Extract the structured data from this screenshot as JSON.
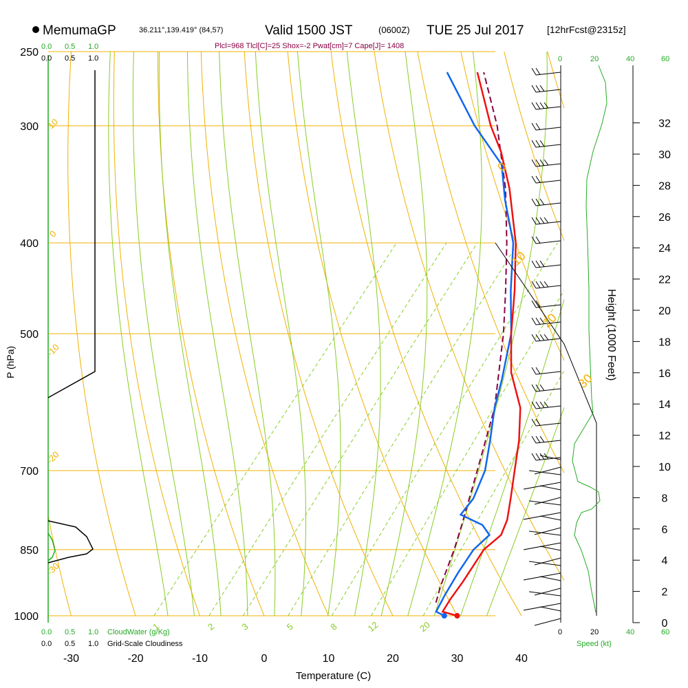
{
  "header": {
    "model": "MemumaGP",
    "location": "36.211°,139.419° (84,57)",
    "valid": "Valid 1500 JST",
    "utc": "(0600Z)",
    "date": "TUE 25 Jul 2017",
    "forecast": "[12hrFcst@2315z]",
    "indices": "Plcl=968 Tlcl[C]=25 Shox=-2 Pwat[cm]=7 Cape[J]= 1408"
  },
  "colors": {
    "isobar": "#f0b000",
    "dry_adiabat": "#f0b000",
    "moist_adiabat": "#88cc22",
    "mixing_ratio": "#88cc22",
    "temperature": "#ee1111",
    "dewpoint": "#1166ee",
    "parcel": "#880044",
    "cloud_water": "#22aa22",
    "cloudiness": "#000000",
    "green_label": "#22aa22"
  },
  "chart_data": {
    "type": "line",
    "title": "Skew-T log-P sounding",
    "xlabel": "Temperature (C)",
    "ylabel": "P (hPa)",
    "right_ylabel": "Height (1000 Feet)",
    "x_ticks": [
      "-30",
      "-20",
      "-10",
      "0",
      "10",
      "20",
      "30",
      "40"
    ],
    "p_ticks": [
      {
        "p": 250,
        "label": "250"
      },
      {
        "p": 300,
        "label": "300"
      },
      {
        "p": 400,
        "label": "400"
      },
      {
        "p": 500,
        "label": "500"
      },
      {
        "p": 700,
        "label": "700"
      },
      {
        "p": 850,
        "label": "850"
      },
      {
        "p": 1000,
        "label": "1000"
      }
    ],
    "height_ticks": [
      "0",
      "2",
      "4",
      "6",
      "8",
      "10",
      "12",
      "14",
      "16",
      "18",
      "20",
      "22",
      "24",
      "26",
      "28",
      "30",
      "32"
    ],
    "dry_adiabat_labels": [
      "10",
      "0",
      "-10",
      "-20",
      "-30",
      "0",
      "10",
      "20",
      "30"
    ],
    "mixing_ratio_labels": [
      "1",
      "2",
      "3",
      "5",
      "8",
      "12",
      "20"
    ],
    "temperature_profile": [
      {
        "p": 1000,
        "t": 30.0
      },
      {
        "p": 990,
        "t": 27.2
      },
      {
        "p": 960,
        "t": 26.8
      },
      {
        "p": 920,
        "t": 26.5
      },
      {
        "p": 880,
        "t": 26.0
      },
      {
        "p": 850,
        "t": 25.6
      },
      {
        "p": 820,
        "t": 26.4
      },
      {
        "p": 790,
        "t": 25.4
      },
      {
        "p": 750,
        "t": 23.2
      },
      {
        "p": 700,
        "t": 20.2
      },
      {
        "p": 650,
        "t": 17.0
      },
      {
        "p": 600,
        "t": 13.0
      },
      {
        "p": 550,
        "t": 7.0
      },
      {
        "p": 500,
        "t": 2.0
      },
      {
        "p": 450,
        "t": -3.0
      },
      {
        "p": 400,
        "t": -9.0
      },
      {
        "p": 350,
        "t": -17.0
      },
      {
        "p": 320,
        "t": -23.0
      },
      {
        "p": 300,
        "t": -28.0
      },
      {
        "p": 263,
        "t": -37.0
      }
    ],
    "dewpoint_profile": [
      {
        "p": 1000,
        "t": 28.0
      },
      {
        "p": 990,
        "t": 26.2
      },
      {
        "p": 950,
        "t": 25.4
      },
      {
        "p": 900,
        "t": 24.6
      },
      {
        "p": 850,
        "t": 24.0
      },
      {
        "p": 820,
        "t": 24.6
      },
      {
        "p": 800,
        "t": 22.2
      },
      {
        "p": 780,
        "t": 17.5
      },
      {
        "p": 750,
        "t": 17.4
      },
      {
        "p": 700,
        "t": 15.6
      },
      {
        "p": 650,
        "t": 12.5
      },
      {
        "p": 600,
        "t": 9.0
      },
      {
        "p": 560,
        "t": 6.5
      },
      {
        "p": 500,
        "t": 2.0
      },
      {
        "p": 450,
        "t": -3.6
      },
      {
        "p": 400,
        "t": -9.4
      },
      {
        "p": 360,
        "t": -16.2
      },
      {
        "p": 330,
        "t": -21.3
      },
      {
        "p": 300,
        "t": -30.5
      },
      {
        "p": 263,
        "t": -41.7
      }
    ],
    "parcel_profile": [
      {
        "p": 968,
        "t": 25.0
      },
      {
        "p": 930,
        "t": 23.6
      },
      {
        "p": 850,
        "t": 21.0
      },
      {
        "p": 800,
        "t": 19.0
      },
      {
        "p": 700,
        "t": 14.4
      },
      {
        "p": 600,
        "t": 9.0
      },
      {
        "p": 500,
        "t": 0.8
      },
      {
        "p": 450,
        "t": -4.4
      },
      {
        "p": 400,
        "t": -10.4
      },
      {
        "p": 350,
        "t": -17.6
      },
      {
        "p": 300,
        "t": -27.0
      },
      {
        "p": 263,
        "t": -36.0
      }
    ],
    "surface_points": {
      "temperature": 30.0,
      "dewpoint": 28.0,
      "p": 1000
    },
    "cloud_water_axis": [
      "0.0",
      "0.5",
      "1.0"
    ],
    "cloud_water_label": "CloudWater (g/Kg)",
    "cloudiness_axis": [
      "0.0",
      "0.5",
      "1.0"
    ],
    "cloudiness_label": "Grid-Scale Cloudiness",
    "speed_axis": [
      "0",
      "20",
      "40",
      "60"
    ],
    "speed_label": "Speed (kt)"
  }
}
